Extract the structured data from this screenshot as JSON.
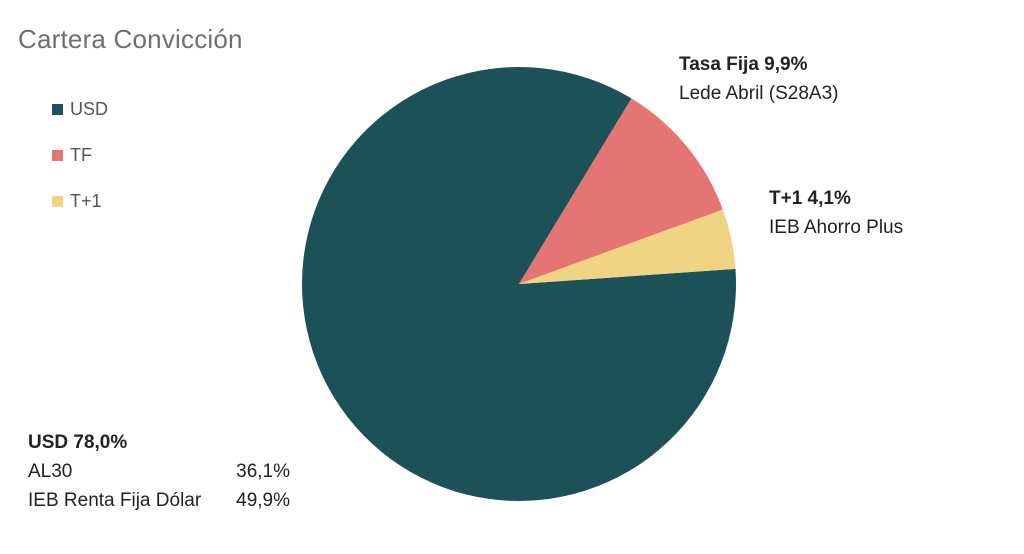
{
  "title": "Cartera Convicción",
  "legend": [
    {
      "label": "USD",
      "color": "#1d5158"
    },
    {
      "label": "TF",
      "color": "#e57573"
    },
    {
      "label": "T+1",
      "color": "#f0d484"
    }
  ],
  "chart_data": {
    "type": "pie",
    "title": "Cartera Convicción",
    "categories": [
      "USD",
      "TF",
      "T+1"
    ],
    "values": [
      78.0,
      9.9,
      4.1
    ],
    "colors": [
      "#1d5158",
      "#e57573",
      "#f0d484"
    ],
    "legend_position": "left",
    "annotations": {
      "tf": {
        "header": "Tasa Fija 9,9%",
        "detail": "Lede Abril  (S28A3)"
      },
      "t1": {
        "header": "T+1  4,1%",
        "detail": "IEB Ahorro Plus"
      },
      "usd": {
        "header": "USD 78,0%",
        "rows": [
          {
            "name": "AL30",
            "value": "36,1%"
          },
          {
            "name": "IEB Renta Fija Dólar",
            "value": "49,9%"
          }
        ]
      }
    }
  }
}
